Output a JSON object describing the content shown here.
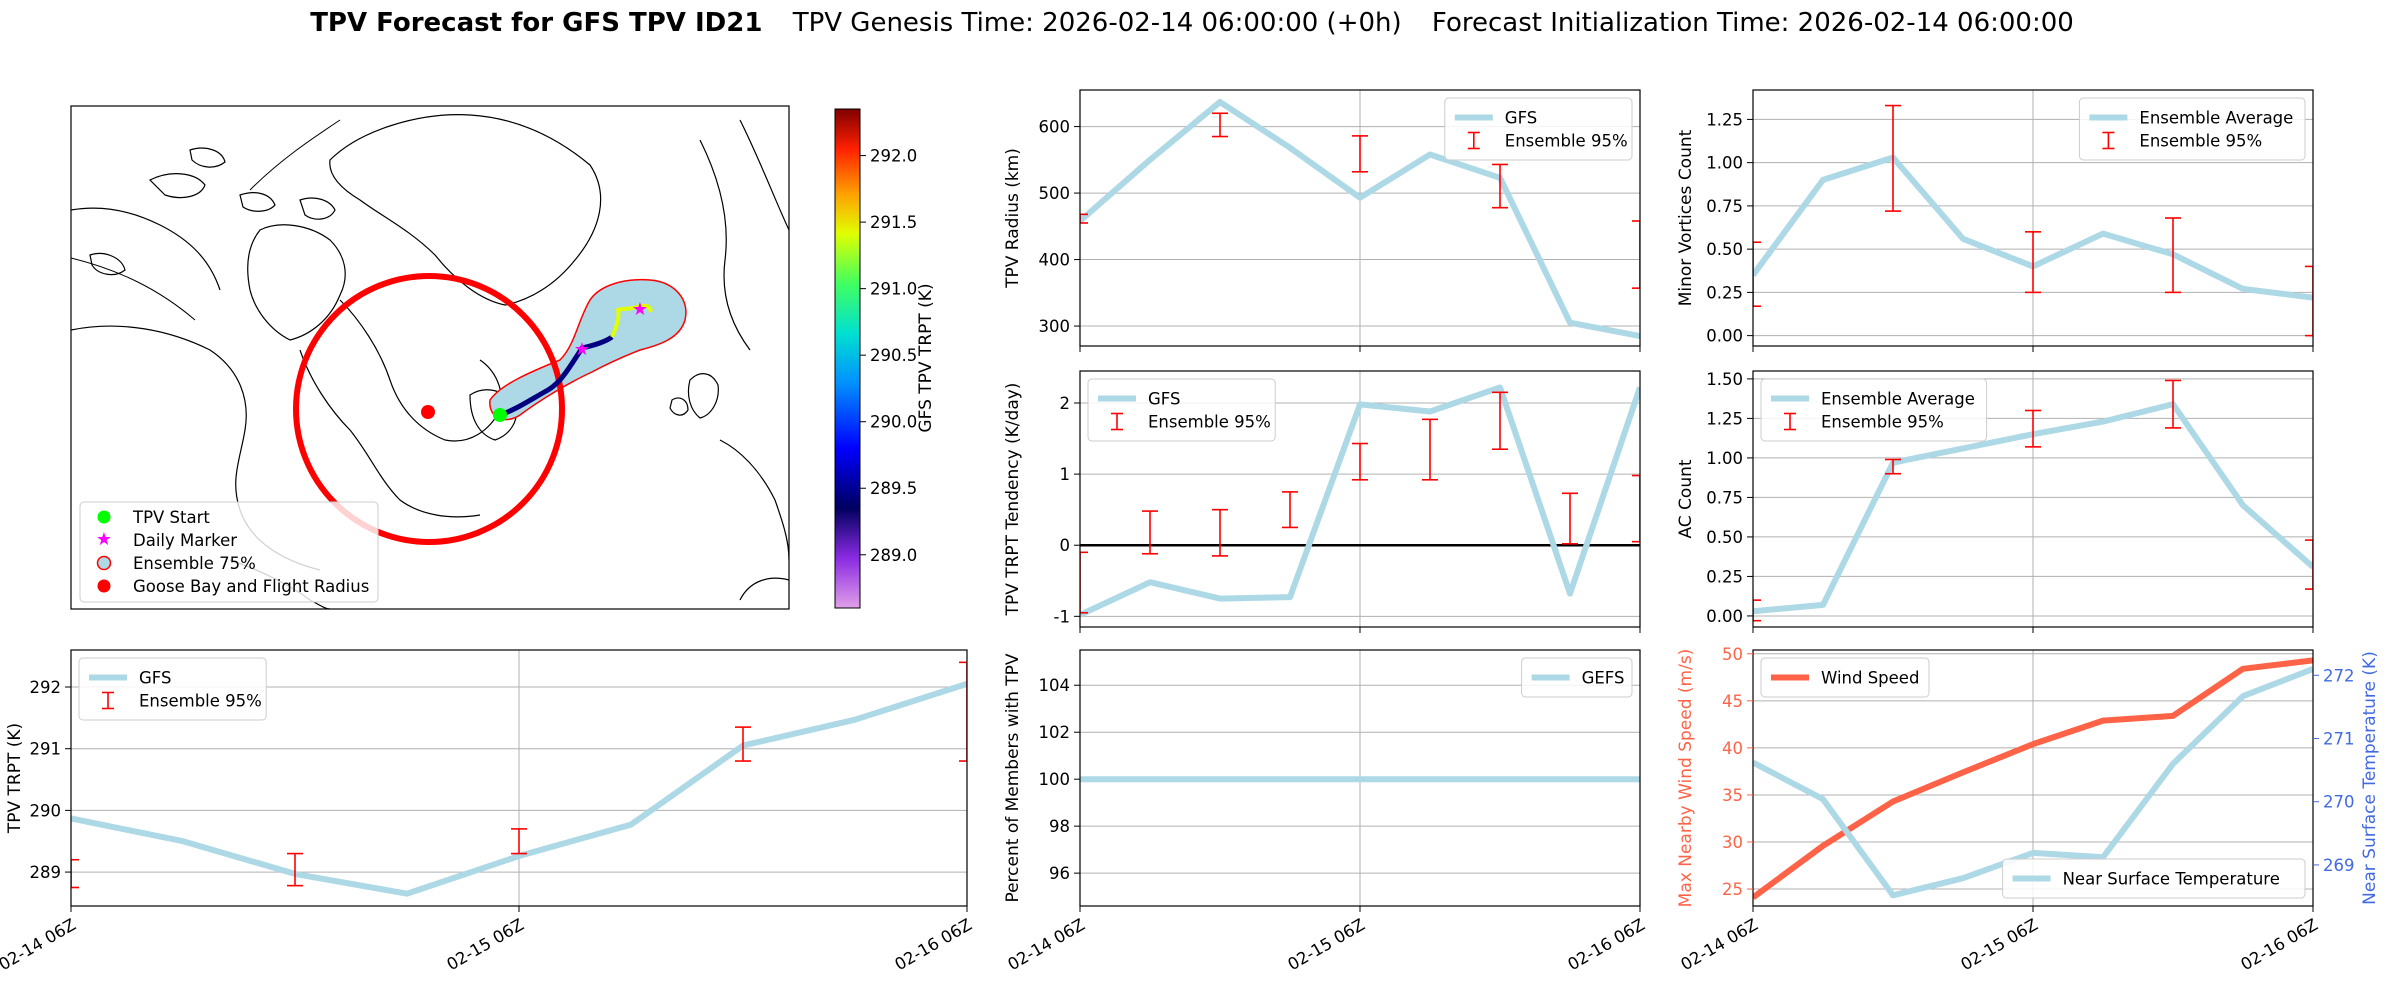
{
  "title": {
    "bold": "TPV Forecast for GFS TPV ID21",
    "genesis": "TPV Genesis Time: 2026-02-14 06:00:00 (+0h)",
    "init": "Forecast Initialization Time: 2026-02-14 06:00:00"
  },
  "colors": {
    "line": "#add8e6",
    "error": "#ff0000",
    "wind": "#ff6347",
    "temp_axis": "#4169e1",
    "tpv_start": "#00ff00",
    "daily_marker": "#ff00ff",
    "goose_bay": "#ff0000",
    "ensemble75_fill": "#add8e6"
  },
  "map": {
    "legend": [
      "TPV Start",
      "Daily Marker",
      "Ensemble 75%",
      "Goose Bay and Flight Radius"
    ],
    "colorbar": {
      "label": "GFS TPV TRPT (K)",
      "range": [
        288.6,
        292.35
      ],
      "ticks": [
        "292.0",
        "291.5",
        "291.0",
        "290.5",
        "290.0",
        "289.5",
        "289.0"
      ]
    }
  },
  "time_ticks": [
    "02-14 06Z",
    "02-15 06Z",
    "02-16 06Z"
  ],
  "chart_data": [
    {
      "id": "trpt",
      "type": "line",
      "ylabel": "TPV TRPT (K)",
      "x": [
        0,
        0.25,
        0.5,
        0.75,
        1.0,
        1.25,
        1.5,
        1.75,
        2.0
      ],
      "ylim": [
        288.45,
        292.6
      ],
      "yticks": [
        289,
        290,
        291,
        292
      ],
      "grid": true,
      "legend_position": "upper-left",
      "series": [
        {
          "name": "GFS",
          "values": [
            289.87,
            289.5,
            288.97,
            288.65,
            289.26,
            289.77,
            291.05,
            291.47,
            292.05
          ]
        }
      ],
      "error_bars": {
        "name": "Ensemble 95%",
        "x": [
          0,
          0.5,
          1.0,
          1.5,
          2.0
        ],
        "low": [
          288.75,
          288.78,
          289.3,
          290.8,
          290.8
        ],
        "high": [
          289.2,
          289.3,
          289.7,
          291.35,
          292.4
        ]
      }
    },
    {
      "id": "radius",
      "type": "line",
      "ylabel": "TPV Radius (km)",
      "x": [
        0,
        0.25,
        0.5,
        0.75,
        1.0,
        1.25,
        1.5,
        1.75,
        2.0
      ],
      "ylim": [
        270,
        655
      ],
      "yticks": [
        300,
        400,
        500,
        600
      ],
      "grid": true,
      "legend_position": "upper-right",
      "series": [
        {
          "name": "GFS",
          "values": [
            458,
            550,
            637,
            568,
            493,
            558,
            523,
            305,
            285
          ]
        }
      ],
      "error_bars": {
        "name": "Ensemble 95%",
        "x": [
          0,
          0.5,
          1.0,
          1.5,
          2.0
        ],
        "low": [
          455,
          585,
          532,
          478,
          357
        ],
        "high": [
          468,
          620,
          586,
          543,
          458
        ]
      }
    },
    {
      "id": "tendency",
      "type": "line",
      "ylabel": "TPV TRPT Tendency (K/day)",
      "x": [
        0,
        0.25,
        0.5,
        0.75,
        1.0,
        1.25,
        1.5,
        1.75,
        2.0
      ],
      "ylim": [
        -1.15,
        2.45
      ],
      "yticks": [
        -1,
        0,
        1,
        2
      ],
      "grid": true,
      "zero_line": true,
      "legend_position": "upper-left",
      "series": [
        {
          "name": "GFS",
          "values": [
            -0.98,
            -0.52,
            -0.75,
            -0.73,
            1.98,
            1.88,
            2.22,
            -0.68,
            2.22
          ]
        }
      ],
      "error_bars": {
        "name": "Ensemble 95%",
        "x": [
          0,
          0.25,
          0.5,
          0.75,
          1.0,
          1.25,
          1.5,
          1.75,
          2.0
        ],
        "low": [
          -0.95,
          -0.12,
          -0.15,
          0.25,
          0.92,
          0.92,
          1.35,
          0.02,
          0.05
        ],
        "high": [
          -0.1,
          0.48,
          0.5,
          0.75,
          1.43,
          1.77,
          2.15,
          0.73,
          0.98
        ]
      }
    },
    {
      "id": "percent",
      "type": "line",
      "ylabel": "Percent of Members with TPV",
      "x": [
        0,
        2.0
      ],
      "ylim": [
        94.6,
        105.5
      ],
      "yticks": [
        96,
        98,
        100,
        102,
        104
      ],
      "grid": true,
      "legend_position": "upper-right",
      "series": [
        {
          "name": "GEFS",
          "values": [
            100,
            100
          ]
        }
      ]
    },
    {
      "id": "minor",
      "type": "line",
      "ylabel": "Minor Vortices Count",
      "x": [
        0,
        0.25,
        0.5,
        0.75,
        1.0,
        1.25,
        1.5,
        1.75,
        2.0
      ],
      "ylim": [
        -0.06,
        1.42
      ],
      "yticks": [
        0.0,
        0.25,
        0.5,
        0.75,
        1.0,
        1.25
      ],
      "grid": true,
      "legend_position": "upper-right",
      "series": [
        {
          "name": "Ensemble Average",
          "values": [
            0.35,
            0.9,
            1.03,
            0.56,
            0.4,
            0.59,
            0.47,
            0.27,
            0.22
          ]
        }
      ],
      "error_bars": {
        "name": "Ensemble 95%",
        "x": [
          0,
          0.5,
          1.0,
          1.5,
          2.0
        ],
        "low": [
          0.17,
          0.72,
          0.25,
          0.25,
          0.0
        ],
        "high": [
          0.54,
          1.33,
          0.6,
          0.68,
          0.4
        ]
      }
    },
    {
      "id": "ac",
      "type": "line",
      "ylabel": "AC Count",
      "x": [
        0,
        0.25,
        0.5,
        0.75,
        1.0,
        1.25,
        1.5,
        1.75,
        2.0
      ],
      "ylim": [
        -0.07,
        1.55
      ],
      "yticks": [
        0.0,
        0.25,
        0.5,
        0.75,
        1.0,
        1.25,
        1.5
      ],
      "grid": true,
      "legend_position": "upper-left",
      "series": [
        {
          "name": "Ensemble Average",
          "values": [
            0.03,
            0.07,
            0.97,
            1.06,
            1.15,
            1.23,
            1.34,
            0.7,
            0.31
          ]
        }
      ],
      "error_bars": {
        "name": "Ensemble 95%",
        "x": [
          0,
          0.5,
          1.0,
          1.5,
          2.0
        ],
        "low": [
          -0.03,
          0.9,
          1.07,
          1.19,
          0.17
        ],
        "high": [
          0.1,
          0.99,
          1.3,
          1.49,
          0.48
        ]
      }
    },
    {
      "id": "wind_temp",
      "type": "line",
      "ylabel": "Max Nearby Wind Speed (m/s)",
      "ylabel_right": "Near Surface Temperature (K)",
      "x": [
        0,
        0.25,
        0.5,
        0.75,
        1.0,
        1.25,
        1.5,
        1.75,
        2.0
      ],
      "ylim": [
        23.2,
        50.4
      ],
      "yticks": [
        25,
        30,
        35,
        40,
        45,
        50
      ],
      "ylim_right": [
        268.35,
        272.4
      ],
      "yticks_right": [
        269,
        270,
        271,
        272
      ],
      "grid": true,
      "series": [
        {
          "name": "Wind Speed",
          "axis": "left",
          "values": [
            24.1,
            29.6,
            34.3,
            37.4,
            40.4,
            42.9,
            43.4,
            48.4,
            49.3
          ]
        },
        {
          "name": "Near Surface Temperature",
          "axis": "right",
          "values": [
            270.62,
            270.04,
            268.52,
            268.79,
            269.19,
            269.12,
            270.6,
            271.67,
            272.1
          ]
        }
      ],
      "legend_top_left": "Wind Speed",
      "legend_bottom_right": "Near Surface Temperature"
    }
  ]
}
